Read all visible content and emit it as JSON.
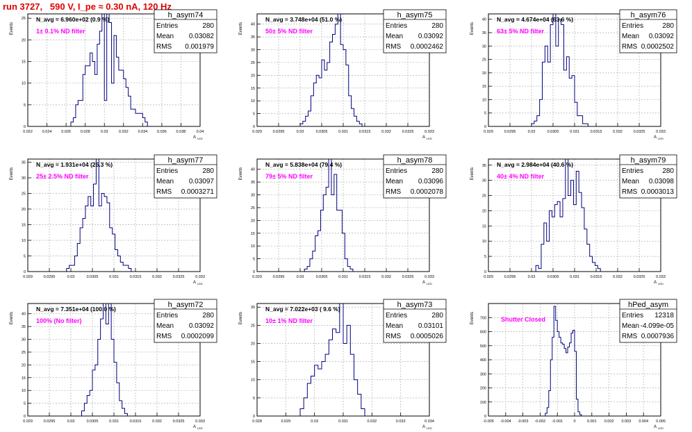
{
  "page": {
    "run_title": "run 3727,   590 V, I_pe ≈ 0.30 nA, 120 Hz"
  },
  "colors": {
    "histogram_line": "#000080",
    "annotation": "#ff00ff",
    "title_text": "#e00000",
    "grid": "#b0b0b0"
  },
  "chart_data": [
    {
      "type": "histogram",
      "name": "h_asym74",
      "title": "N_avg = 6.960e+02 (0.9 %)",
      "annotation": "1± 0.1% ND filter",
      "stats": [
        [
          "Entries",
          "280"
        ],
        [
          "Mean",
          "0.03082"
        ],
        [
          "RMS",
          "0.001979"
        ]
      ],
      "xlabel": "A_LED",
      "ylabel": "Events",
      "xlim": [
        0.022,
        0.04
      ],
      "ylim": [
        0,
        26
      ],
      "xticks": [
        "0.022",
        "0.024",
        "0.026",
        "0.028",
        "0.03",
        "0.032",
        "0.034",
        "0.036",
        "0.038",
        "0.04"
      ],
      "yticks": [
        "0",
        "5",
        "10",
        "15",
        "20",
        "25"
      ],
      "bins": {
        "start": 0.0265,
        "width": 0.00025,
        "values": [
          1,
          2,
          5,
          6,
          6,
          12,
          14,
          14,
          17,
          15,
          12,
          19,
          22,
          26,
          6,
          26,
          24,
          10,
          21,
          16,
          13,
          13,
          11,
          9,
          7,
          4,
          4,
          3,
          3,
          3,
          2,
          1
        ]
      }
    },
    {
      "type": "histogram",
      "name": "h_asym75",
      "title": "N_avg = 3.748e+04 (51.0 %)",
      "annotation": "50± 5% ND filter",
      "stats": [
        [
          "Entries",
          "280"
        ],
        [
          "Mean",
          "0.03092"
        ],
        [
          "RMS",
          "0.0002462"
        ]
      ],
      "xlabel": "A_LED",
      "ylabel": "Events",
      "xlim": [
        0.029,
        0.033
      ],
      "ylim": [
        0,
        44
      ],
      "xticks": [
        "0.029",
        "0.0295",
        "0.03",
        "0.0305",
        "0.031",
        "0.0315",
        "0.032",
        "0.0325",
        "0.033"
      ],
      "yticks": [
        "0",
        "5",
        "10",
        "15",
        "20",
        "25",
        "30",
        "35",
        "40"
      ],
      "bins": {
        "start": 0.03,
        "width": 6.25e-05,
        "values": [
          1,
          2,
          4,
          6,
          12,
          17,
          20,
          19,
          26,
          22,
          25,
          33,
          36,
          40,
          44,
          32,
          30,
          24,
          12,
          7,
          4,
          2,
          1
        ]
      }
    },
    {
      "type": "histogram",
      "name": "h_asym76",
      "title": "N_avg = 4.674e+04 (63.6 %)",
      "annotation": "63± 5% ND filter",
      "stats": [
        [
          "Entries",
          "280"
        ],
        [
          "Mean",
          "0.03092"
        ],
        [
          "RMS",
          "0.0002502"
        ]
      ],
      "xlabel": "A_LED",
      "ylabel": "Events",
      "xlim": [
        0.029,
        0.033
      ],
      "ylim": [
        0,
        42
      ],
      "xticks": [
        "0.029",
        "0.0295",
        "0.03",
        "0.0305",
        "0.031",
        "0.0315",
        "0.032",
        "0.0325",
        "0.033"
      ],
      "yticks": [
        "0",
        "5",
        "10",
        "15",
        "20",
        "25",
        "30",
        "35",
        "40"
      ],
      "bins": {
        "start": 0.03,
        "width": 6.25e-05,
        "values": [
          1,
          2,
          4,
          10,
          24,
          30,
          24,
          38,
          42,
          30,
          40,
          38,
          21,
          26,
          18,
          19,
          9,
          4,
          4,
          1,
          1
        ]
      }
    },
    {
      "type": "histogram",
      "name": "h_asym77",
      "title": "N_avg = 1.931e+04 (26.3 %)",
      "annotation": "25± 2.5% ND filter",
      "stats": [
        [
          "Entries",
          "280"
        ],
        [
          "Mean",
          "0.03097"
        ],
        [
          "RMS",
          "0.0003271"
        ]
      ],
      "xlabel": "A_LED",
      "ylabel": "Events",
      "xlim": [
        0.029,
        0.033
      ],
      "ylim": [
        0,
        36
      ],
      "xticks": [
        "0.029",
        "0.0295",
        "0.03",
        "0.0305",
        "0.031",
        "0.0315",
        "0.032",
        "0.0325",
        "0.033"
      ],
      "yticks": [
        "0",
        "5",
        "10",
        "15",
        "20",
        "25",
        "30",
        "35"
      ],
      "bins": {
        "start": 0.0299,
        "width": 6.25e-05,
        "values": [
          1,
          2,
          2,
          5,
          9,
          14,
          17,
          21,
          24,
          21,
          28,
          36,
          21,
          25,
          24,
          22,
          14,
          12,
          7,
          5,
          3,
          2,
          2,
          1
        ]
      }
    },
    {
      "type": "histogram",
      "name": "h_asym78",
      "title": "N_avg = 5.838e+04 (79.4 %)",
      "annotation": "79± 5% ND filter",
      "stats": [
        [
          "Entries",
          "280"
        ],
        [
          "Mean",
          "0.03096"
        ],
        [
          "RMS",
          "0.0002078"
        ]
      ],
      "xlabel": "A_LED",
      "ylabel": "Events",
      "xlim": [
        0.029,
        0.033
      ],
      "ylim": [
        0,
        44
      ],
      "xticks": [
        "0.029",
        "0.0295",
        "0.03",
        "0.0305",
        "0.031",
        "0.0315",
        "0.032",
        "0.0325",
        "0.033"
      ],
      "yticks": [
        "0",
        "5",
        "10",
        "15",
        "20",
        "25",
        "30",
        "35",
        "40"
      ],
      "bins": {
        "start": 0.0301,
        "width": 6.25e-05,
        "values": [
          1,
          2,
          5,
          8,
          14,
          16,
          24,
          30,
          33,
          44,
          30,
          38,
          24,
          24,
          15,
          5,
          2,
          1
        ]
      }
    },
    {
      "type": "histogram",
      "name": "h_asym79",
      "title": "N_avg = 2.984e+04 (40.6 %)",
      "annotation": "40± 4% ND filter",
      "stats": [
        [
          "Entries",
          "280"
        ],
        [
          "Mean",
          "0.03098"
        ],
        [
          "RMS",
          "0.0003013"
        ]
      ],
      "xlabel": "A_LED",
      "ylabel": "Events",
      "xlim": [
        0.029,
        0.033
      ],
      "ylim": [
        0,
        37
      ],
      "xticks": [
        "0.029",
        "0.0295",
        "0.03",
        "0.0305",
        "0.031",
        "0.0315",
        "0.032",
        "0.0325",
        "0.033"
      ],
      "yticks": [
        "0",
        "5",
        "10",
        "15",
        "20",
        "25",
        "30",
        "35"
      ],
      "bins": {
        "start": 0.0301,
        "width": 6.25e-05,
        "values": [
          2,
          1,
          9,
          16,
          10,
          20,
          18,
          22,
          23,
          18,
          24,
          37,
          25,
          30,
          22,
          33,
          26,
          21,
          14,
          9,
          5,
          3,
          2,
          1
        ]
      }
    },
    {
      "type": "histogram",
      "name": "h_asym72",
      "title": "N_avg = 7.351e+04 (100.0 %)",
      "annotation": "100% (No filter)",
      "stats": [
        [
          "Entries",
          "280"
        ],
        [
          "Mean",
          "0.03092"
        ],
        [
          "RMS",
          "0.0002099"
        ]
      ],
      "xlabel": "A_LED",
      "ylabel": "Events",
      "xlim": [
        0.029,
        0.033
      ],
      "ylim": [
        0,
        44
      ],
      "xticks": [
        "0.029",
        "0.0295",
        "0.03",
        "0.0305",
        "0.031",
        "0.0315",
        "0.032",
        "0.0325",
        "0.033"
      ],
      "yticks": [
        "0",
        "5",
        "10",
        "15",
        "20",
        "25",
        "30",
        "35",
        "40"
      ],
      "bins": {
        "start": 0.03025,
        "width": 6.25e-05,
        "values": [
          2,
          5,
          8,
          10,
          18,
          20,
          30,
          38,
          44,
          36,
          44,
          30,
          21,
          13,
          6,
          3,
          1
        ]
      }
    },
    {
      "type": "histogram",
      "name": "h_asym73",
      "title": "N_avg = 7.022e+03 ( 9.6 %)",
      "annotation": "10± 1% ND filter",
      "stats": [
        [
          "Entries",
          "280"
        ],
        [
          "Mean",
          "0.03101"
        ],
        [
          "RMS",
          "0.0005026"
        ]
      ],
      "xlabel": "A_LED",
      "ylabel": "Events",
      "xlim": [
        0.028,
        0.034
      ],
      "ylim": [
        0,
        31
      ],
      "xticks": [
        "0.028",
        "0.029",
        "0.03",
        "0.031",
        "0.032",
        "0.033",
        "0.034"
      ],
      "yticks": [
        "0",
        "5",
        "10",
        "15",
        "20",
        "25",
        "30"
      ],
      "bins": {
        "start": 0.0295,
        "width": 0.000125,
        "values": [
          2,
          5,
          9,
          11,
          14,
          13,
          15,
          17,
          21,
          24,
          23,
          31,
          20,
          25,
          17,
          10,
          6,
          2
        ]
      }
    },
    {
      "type": "histogram",
      "name": "hPed_asym",
      "title": "",
      "annotation": "Shutter Closed",
      "stats": [
        [
          "Entries",
          "12318"
        ],
        [
          "Mean",
          "-4.099e-05"
        ],
        [
          "RMS",
          "0.0007936"
        ]
      ],
      "xlabel": "A_LED",
      "ylabel": "Events",
      "xlim": [
        -0.005,
        0.005
      ],
      "ylim": [
        0,
        800
      ],
      "xticks": [
        "-0.005",
        "-0.004",
        "-0.003",
        "-0.002",
        "-0.001",
        "0",
        "0.001",
        "0.002",
        "0.003",
        "0.004",
        "0.005"
      ],
      "yticks": [
        "0",
        "100",
        "200",
        "300",
        "400",
        "500",
        "600",
        "700"
      ],
      "bins": {
        "start": -0.0017,
        "width": 0.0001,
        "values": [
          20,
          60,
          180,
          400,
          560,
          780,
          680,
          600,
          560,
          520,
          510,
          480,
          450,
          490,
          520,
          590,
          610,
          460,
          120,
          30,
          10
        ]
      }
    }
  ]
}
